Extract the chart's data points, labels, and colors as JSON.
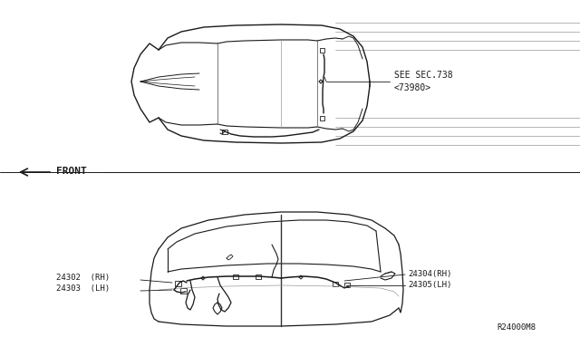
{
  "bg_color": "#ffffff",
  "lc": "#1a1a1a",
  "gray": "#999999",
  "label_sec": "SEE SEC.738\n<73980>",
  "label_front": "FRONT",
  "label_24302": "24302  (RH)",
  "label_24303": "24303  (LH)",
  "label_24304": "24304(RH)",
  "label_24305": "24305(LH)",
  "label_ref": "R24000M8",
  "fs": 6.5,
  "fs_front": 8
}
